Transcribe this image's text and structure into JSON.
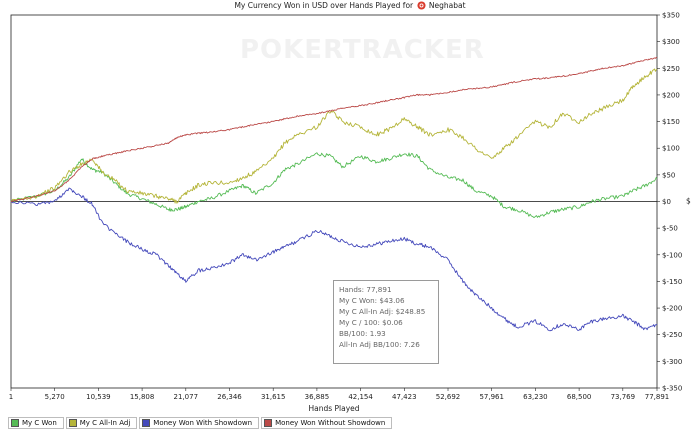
{
  "title": {
    "text_before": "My Currency Won in USD over Hands Played for",
    "player": "Neghabat"
  },
  "watermark": {
    "text": "POKERTRACKER"
  },
  "tooltip": [
    "Hands: 77,891",
    "My C Won: $43.06",
    "My C All-In Adj: $248.85",
    "My C / 100: $0.06",
    "BB/100: 1.93",
    "All-In Adj BB/100: 7.26"
  ],
  "colors": {
    "my_c_won": "#55bb55",
    "my_c_all_in_adj": "#b5b53a",
    "money_won_with_showdown": "#4449bb",
    "money_won_without_showdown": "#bb4a48",
    "poker_icon": "#d93a2b"
  },
  "chart_data": {
    "type": "line",
    "title": "My Currency Won in USD over Hands Played for Neghabat",
    "xlabel": "Hands Played",
    "ylabel": "$",
    "xlim": [
      1,
      77891
    ],
    "ylim": [
      -350,
      350
    ],
    "x_ticks": [
      "1",
      "5,270",
      "10,539",
      "15,808",
      "21,077",
      "26,346",
      "31,615",
      "36,885",
      "42,154",
      "47,423",
      "52,692",
      "57,961",
      "63,230",
      "68,500",
      "73,769",
      "77,891"
    ],
    "y_ticks": [
      "$350",
      "$300",
      "$250",
      "$200",
      "$150",
      "$100",
      "$50",
      "$0",
      "$-50",
      "$-100",
      "$-150",
      "$-200",
      "$-250",
      "$-300",
      "$-350"
    ],
    "grid": false,
    "legend_position": "bottom-left",
    "x": [
      1,
      3000,
      5270,
      7000,
      8500,
      9800,
      11000,
      12500,
      14000,
      15808,
      17500,
      19000,
      20000,
      21077,
      22500,
      24000,
      26346,
      28000,
      29500,
      31615,
      33000,
      34500,
      36885,
      38500,
      40000,
      42154,
      44000,
      45500,
      47423,
      49000,
      50500,
      52692,
      54500,
      56000,
      57961,
      59500,
      61000,
      63230,
      65000,
      66500,
      68500,
      70000,
      71500,
      73769,
      75000,
      76500,
      77891
    ],
    "series": [
      {
        "name": "My C Won",
        "values": [
          0,
          10,
          20,
          45,
          80,
          60,
          55,
          35,
          15,
          5,
          -5,
          -15,
          -15,
          -10,
          0,
          5,
          20,
          30,
          15,
          35,
          60,
          70,
          90,
          85,
          65,
          85,
          75,
          80,
          90,
          85,
          60,
          45,
          40,
          20,
          10,
          -10,
          -15,
          -30,
          -20,
          -15,
          -10,
          0,
          5,
          10,
          20,
          30,
          43.06
        ]
      },
      {
        "name": "My C All-In Adj",
        "values": [
          0,
          10,
          25,
          55,
          70,
          80,
          55,
          40,
          20,
          15,
          10,
          5,
          0,
          15,
          30,
          35,
          35,
          45,
          55,
          80,
          110,
          125,
          140,
          170,
          150,
          140,
          125,
          135,
          155,
          140,
          125,
          135,
          120,
          100,
          80,
          100,
          120,
          150,
          140,
          165,
          150,
          165,
          175,
          190,
          215,
          235,
          248.85
        ]
      },
      {
        "name": "Money Won With Showdown",
        "values": [
          0,
          -5,
          0,
          25,
          10,
          -5,
          -40,
          -60,
          -75,
          -90,
          -100,
          -120,
          -135,
          -150,
          -130,
          -125,
          -115,
          -100,
          -110,
          -95,
          -85,
          -75,
          -55,
          -65,
          -75,
          -85,
          -80,
          -75,
          -70,
          -80,
          -85,
          -110,
          -150,
          -175,
          -200,
          -220,
          -235,
          -225,
          -240,
          -230,
          -240,
          -225,
          -220,
          -215,
          -225,
          -240,
          -230
        ]
      },
      {
        "name": "Money Won Without Showdown",
        "values": [
          0,
          10,
          20,
          40,
          65,
          80,
          85,
          90,
          95,
          100,
          105,
          110,
          120,
          125,
          128,
          130,
          135,
          140,
          145,
          150,
          155,
          160,
          165,
          170,
          175,
          180,
          185,
          190,
          195,
          200,
          200,
          205,
          210,
          212,
          215,
          220,
          225,
          230,
          232,
          235,
          240,
          245,
          250,
          255,
          260,
          265,
          270
        ]
      }
    ]
  }
}
